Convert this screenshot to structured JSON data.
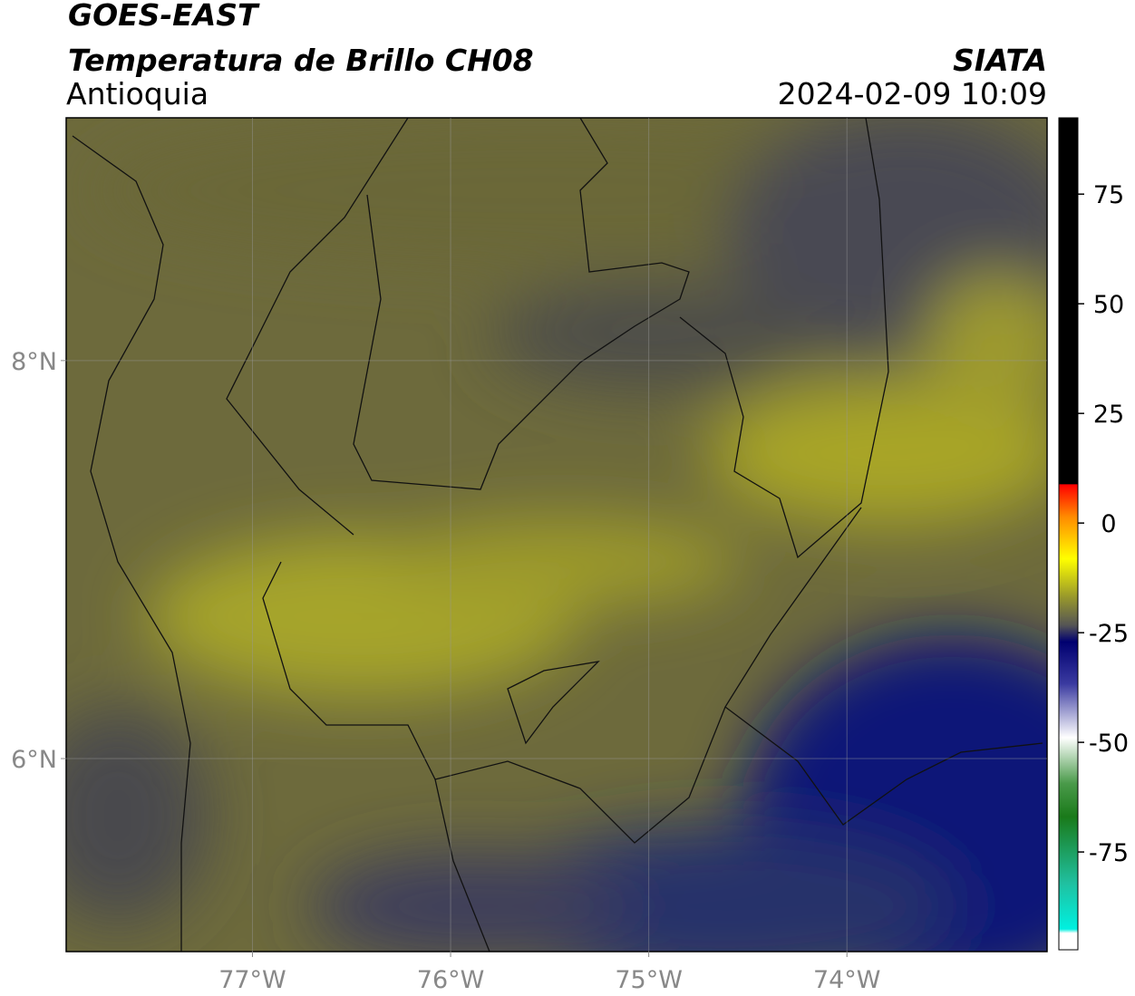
{
  "map": {
    "title": "GOES-EAST",
    "subtitle": "Temperatura de Brillo CH08",
    "region": "Antioquia",
    "agency": "SIATA",
    "timestamp": "2024-02-09 10:09",
    "xlim": [
      -77.94,
      -72.99
    ],
    "ylim": [
      5.03,
      9.22
    ],
    "xticks": [
      {
        "value": -77,
        "label": "77°W"
      },
      {
        "value": -76,
        "label": "76°W"
      },
      {
        "value": -75,
        "label": "75°W"
      },
      {
        "value": -74,
        "label": "74°W"
      }
    ],
    "yticks": [
      {
        "value": 8,
        "label": "8°N"
      },
      {
        "value": 6,
        "label": "6°N"
      }
    ],
    "grid": true,
    "colorbar": {
      "lim": [
        -97.3,
        92.4
      ],
      "ticks": [
        75,
        50,
        25,
        0,
        -25,
        -50,
        -75
      ]
    }
  }
}
